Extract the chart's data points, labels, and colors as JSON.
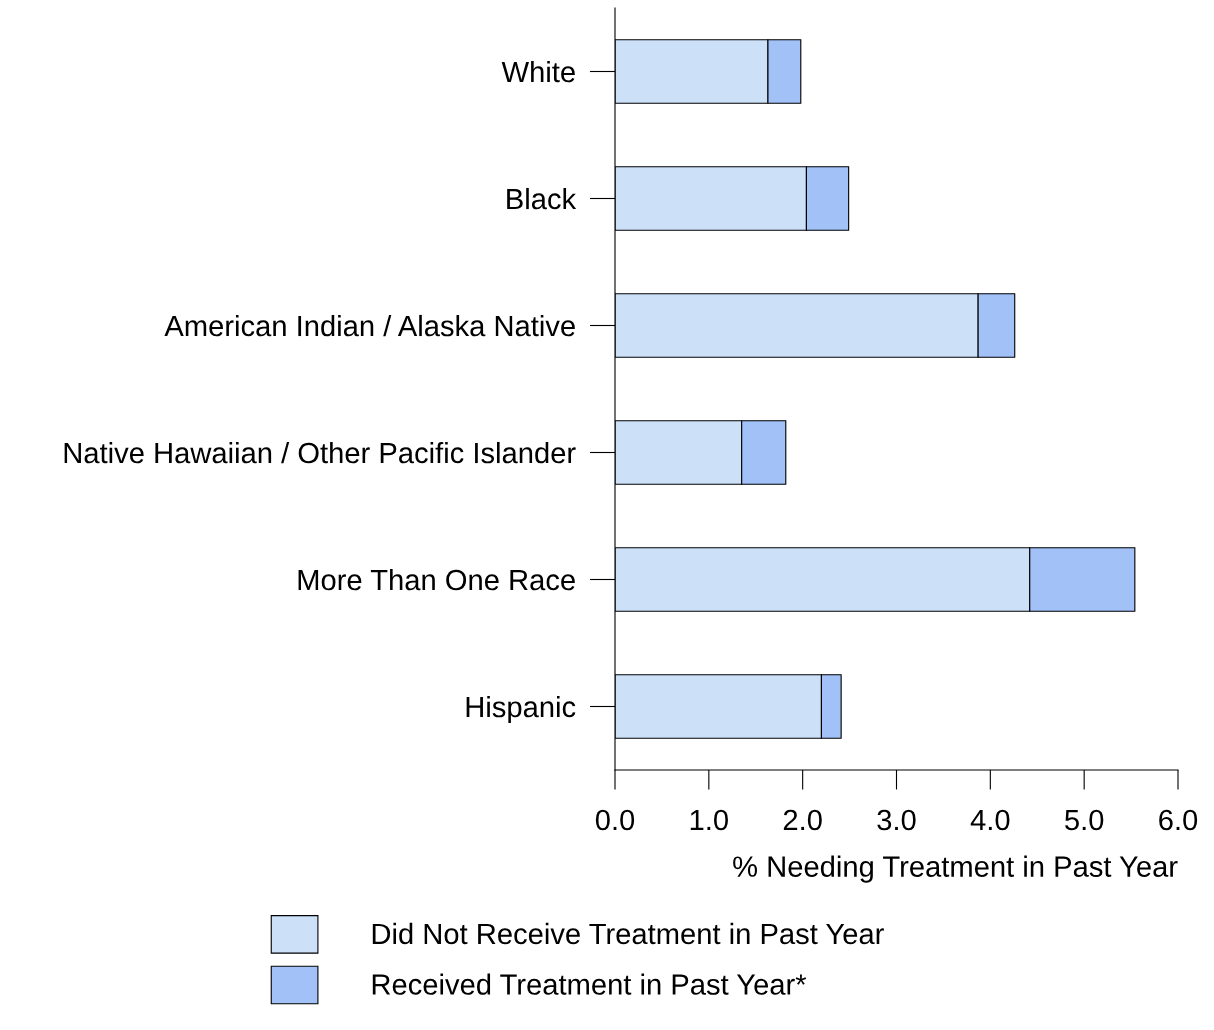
{
  "chart_data": {
    "type": "bar",
    "orientation": "horizontal",
    "stacked": true,
    "categories": [
      "White",
      "Black",
      "American Indian / Alaska Native",
      "Native Hawaiian / Other Pacific Islander",
      "More Than One Race",
      "Hispanic"
    ],
    "series": [
      {
        "name": "Did Not Receive Treatment in Past Year",
        "color": "#cce1f8",
        "values": [
          1.63,
          2.04,
          3.87,
          1.35,
          4.42,
          2.2
        ]
      },
      {
        "name": "Received Treatment in Past Year*",
        "color": "#a1c1f7",
        "values": [
          0.35,
          0.45,
          0.39,
          0.47,
          1.12,
          0.21
        ]
      }
    ],
    "xlabel": "% Needing Treatment in Past Year",
    "xlim": [
      0,
      6
    ],
    "xticks": [
      {
        "value": 0,
        "label": "0.0"
      },
      {
        "value": 1,
        "label": "1.0"
      },
      {
        "value": 2,
        "label": "2.0"
      },
      {
        "value": 3,
        "label": "3.0"
      },
      {
        "value": 4,
        "label": "4.0"
      },
      {
        "value": 5,
        "label": "5.0"
      },
      {
        "value": 6,
        "label": "6.0"
      }
    ],
    "grid": false,
    "legend": "bottom"
  }
}
